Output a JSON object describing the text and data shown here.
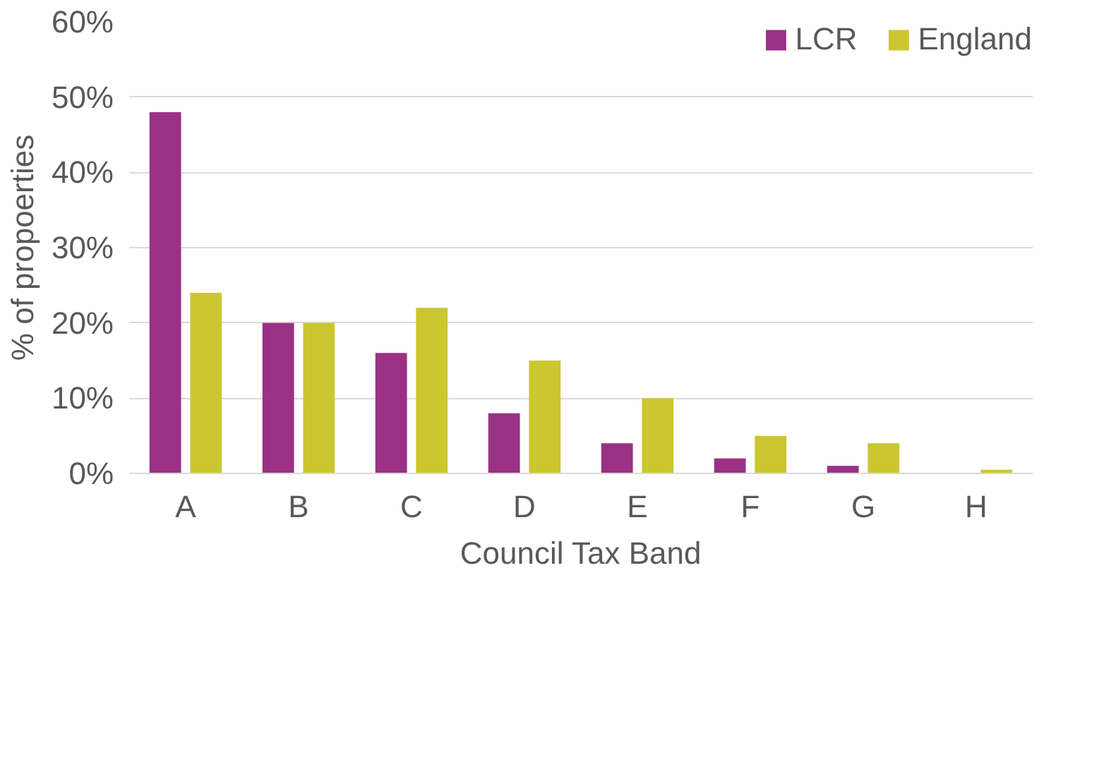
{
  "chart_data": {
    "type": "bar",
    "xlabel": "Council Tax Band",
    "ylabel": "% of propoerties",
    "categories": [
      "A",
      "B",
      "C",
      "D",
      "E",
      "F",
      "G",
      "H"
    ],
    "series": [
      {
        "name": "LCR",
        "color": "#9b3185",
        "values": [
          48,
          20,
          16,
          8,
          4,
          2,
          1,
          0
        ]
      },
      {
        "name": "England",
        "color": "#cbc72f",
        "values": [
          24,
          20,
          22,
          15,
          10,
          5,
          4,
          0.5
        ]
      }
    ],
    "ylim": [
      0,
      60
    ],
    "yticks": [
      {
        "value": 0,
        "label": "0%"
      },
      {
        "value": 10,
        "label": "10%"
      },
      {
        "value": 20,
        "label": "20%"
      },
      {
        "value": 30,
        "label": "30%"
      },
      {
        "value": 40,
        "label": "40%"
      },
      {
        "value": 50,
        "label": "50%"
      },
      {
        "value": 60,
        "label": "60%"
      }
    ],
    "grid": "y",
    "legend": "top right"
  }
}
